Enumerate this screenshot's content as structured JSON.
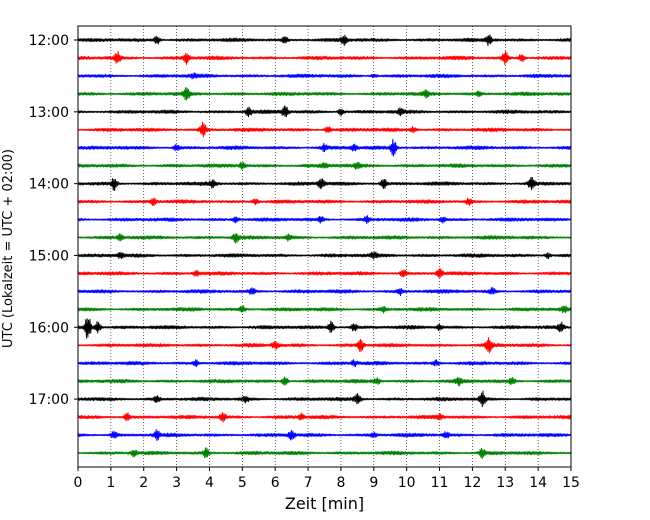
{
  "chart_data": {
    "type": "line",
    "title": "",
    "xlabel": "Zeit  [min]",
    "ylabel": "UTC (Lokalzeit = UTC + 02:00)",
    "xlim": [
      0,
      15
    ],
    "x_ticks": [
      0,
      1,
      2,
      3,
      4,
      5,
      6,
      7,
      8,
      9,
      10,
      11,
      12,
      13,
      14,
      15
    ],
    "y_tick_labels": [
      "12:00",
      "13:00",
      "14:00",
      "15:00",
      "16:00",
      "17:00"
    ],
    "grid": "vertical-dotted",
    "trace_interval_min": 15,
    "color_cycle": [
      "#000000",
      "#ff0000",
      "#0000ff",
      "#008000"
    ],
    "traces": [
      {
        "start": "12:00",
        "events": [
          [
            2.4,
            0.45
          ],
          [
            8.1,
            0.45
          ],
          [
            12.5,
            0.5
          ],
          [
            6.3,
            0.3
          ]
        ]
      },
      {
        "start": "12:15",
        "events": [
          [
            1.2,
            0.6
          ],
          [
            3.3,
            0.6
          ],
          [
            13.0,
            0.6
          ],
          [
            13.5,
            0.45
          ]
        ]
      },
      {
        "start": "12:30",
        "events": [
          [
            3.5,
            0.2
          ],
          [
            9.0,
            0.2
          ]
        ]
      },
      {
        "start": "12:45",
        "events": [
          [
            3.3,
            0.55
          ],
          [
            10.6,
            0.35
          ],
          [
            12.2,
            0.3
          ]
        ]
      },
      {
        "start": "13:00",
        "events": [
          [
            6.3,
            0.6
          ],
          [
            5.2,
            0.45
          ],
          [
            8.0,
            0.35
          ],
          [
            9.8,
            0.3
          ]
        ]
      },
      {
        "start": "13:15",
        "events": [
          [
            3.8,
            0.8
          ],
          [
            7.6,
            0.35
          ],
          [
            10.2,
            0.3
          ]
        ]
      },
      {
        "start": "13:30",
        "events": [
          [
            9.6,
            0.85
          ],
          [
            3.0,
            0.3
          ],
          [
            7.5,
            0.35
          ],
          [
            8.4,
            0.3
          ]
        ]
      },
      {
        "start": "13:45",
        "events": [
          [
            5.0,
            0.35
          ],
          [
            7.5,
            0.25
          ],
          [
            8.5,
            0.3
          ]
        ]
      },
      {
        "start": "14:00",
        "events": [
          [
            1.1,
            0.65
          ],
          [
            4.1,
            0.4
          ],
          [
            7.4,
            0.5
          ],
          [
            9.3,
            0.55
          ],
          [
            13.8,
            0.6
          ]
        ]
      },
      {
        "start": "14:15",
        "events": [
          [
            2.3,
            0.35
          ],
          [
            5.4,
            0.3
          ],
          [
            11.9,
            0.35
          ]
        ]
      },
      {
        "start": "14:30",
        "events": [
          [
            4.8,
            0.35
          ],
          [
            7.4,
            0.3
          ],
          [
            8.8,
            0.3
          ],
          [
            11.1,
            0.3
          ]
        ]
      },
      {
        "start": "14:45",
        "events": [
          [
            4.8,
            0.55
          ],
          [
            6.4,
            0.3
          ],
          [
            1.3,
            0.3
          ]
        ]
      },
      {
        "start": "15:00",
        "events": [
          [
            1.3,
            0.3
          ],
          [
            9.0,
            0.3
          ],
          [
            14.3,
            0.3
          ]
        ]
      },
      {
        "start": "15:15",
        "events": [
          [
            3.6,
            0.3
          ],
          [
            9.9,
            0.35
          ],
          [
            11.0,
            0.45
          ]
        ]
      },
      {
        "start": "15:30",
        "events": [
          [
            5.3,
            0.35
          ],
          [
            9.8,
            0.35
          ],
          [
            12.6,
            0.3
          ]
        ]
      },
      {
        "start": "15:45",
        "events": [
          [
            5.0,
            0.3
          ],
          [
            9.3,
            0.3
          ],
          [
            14.8,
            0.3
          ]
        ]
      },
      {
        "start": "16:00",
        "events": [
          [
            0.3,
            1.4
          ],
          [
            0.6,
            0.6
          ],
          [
            7.7,
            0.6
          ],
          [
            14.7,
            0.5
          ],
          [
            8.4,
            0.35
          ],
          [
            11.0,
            0.3
          ]
        ]
      },
      {
        "start": "16:15",
        "events": [
          [
            6.0,
            0.35
          ],
          [
            8.6,
            0.6
          ],
          [
            12.5,
            0.7
          ]
        ]
      },
      {
        "start": "16:30",
        "events": [
          [
            3.6,
            0.3
          ],
          [
            8.4,
            0.3
          ],
          [
            10.9,
            0.3
          ]
        ]
      },
      {
        "start": "16:45",
        "events": [
          [
            6.3,
            0.45
          ],
          [
            11.6,
            0.35
          ],
          [
            13.2,
            0.3
          ],
          [
            9.1,
            0.3
          ]
        ]
      },
      {
        "start": "17:00",
        "events": [
          [
            12.3,
            0.85
          ],
          [
            8.5,
            0.5
          ],
          [
            5.1,
            0.3
          ],
          [
            2.4,
            0.3
          ]
        ]
      },
      {
        "start": "17:15",
        "events": [
          [
            4.4,
            0.5
          ],
          [
            1.5,
            0.4
          ],
          [
            6.8,
            0.3
          ],
          [
            11.0,
            0.3
          ]
        ]
      },
      {
        "start": "17:30",
        "events": [
          [
            1.1,
            0.35
          ],
          [
            2.4,
            0.45
          ],
          [
            6.5,
            0.5
          ],
          [
            9.0,
            0.3
          ],
          [
            11.2,
            0.3
          ]
        ]
      },
      {
        "start": "17:45",
        "events": [
          [
            3.9,
            0.5
          ],
          [
            1.7,
            0.3
          ],
          [
            12.3,
            0.45
          ]
        ]
      }
    ]
  }
}
